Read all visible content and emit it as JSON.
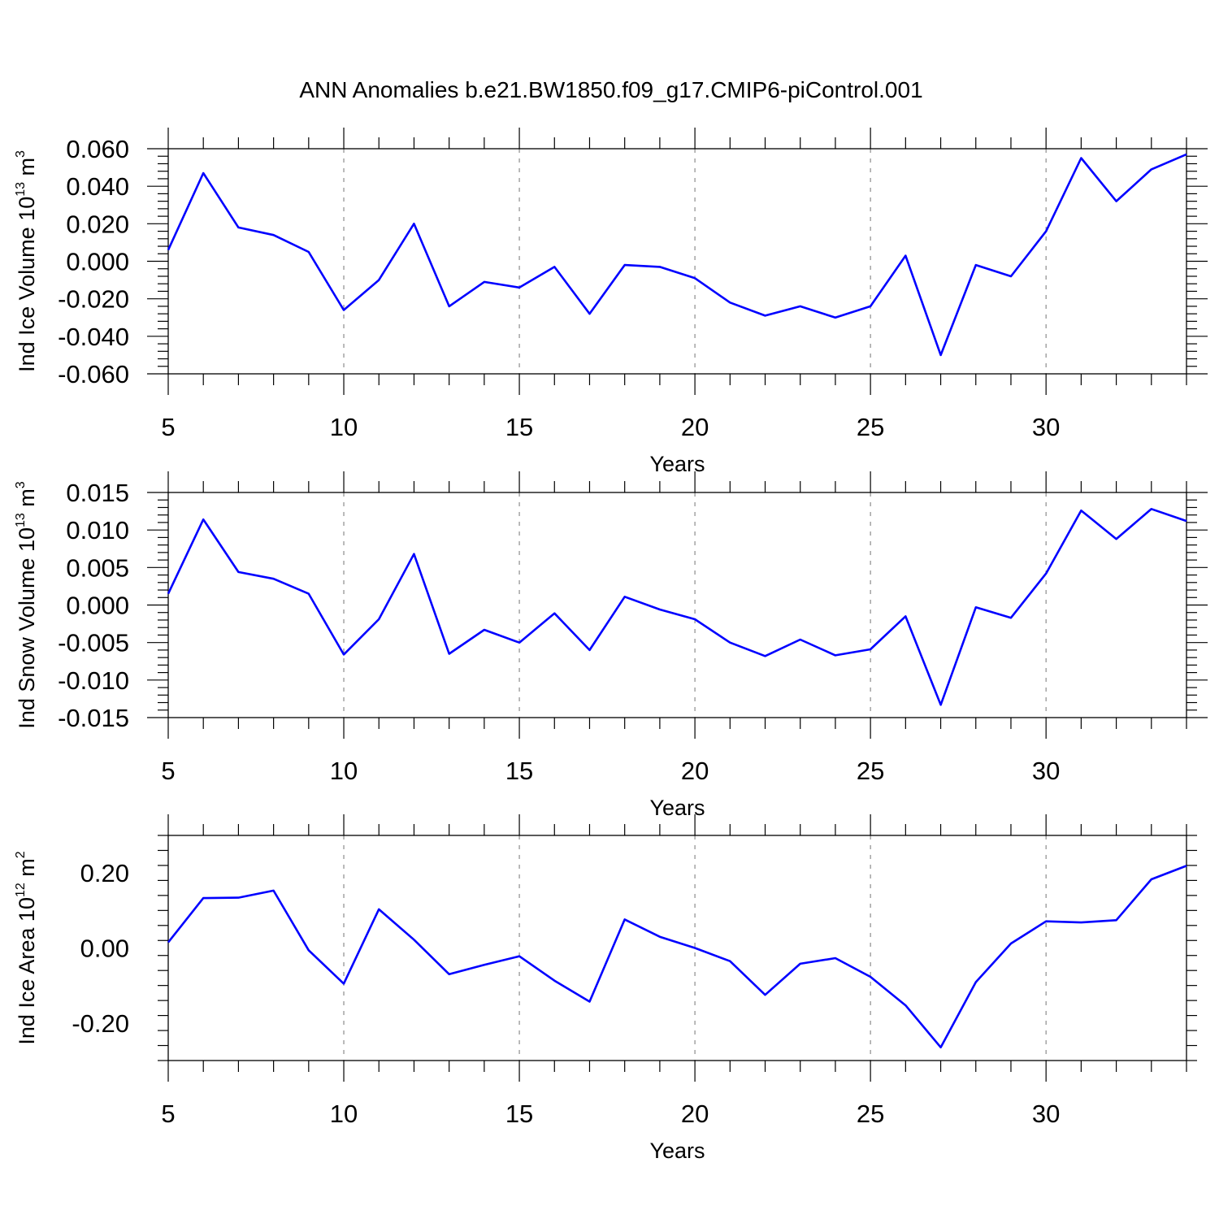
{
  "figure": {
    "title": "ANN Anomalies b.e21.BW1850.f09_g17.CMIP6-piControl.001"
  },
  "colors": {
    "line": "#0000ff",
    "axis": "#000000",
    "grid": "#8c8c8c"
  },
  "chart_data": [
    {
      "type": "line",
      "xlabel": "Years",
      "ylabel_main": "Ind Ice Volume 10",
      "ylabel_exp": "13",
      "ylabel_unit": " m",
      "ylabel_unit_exp": "3",
      "xlim": [
        5,
        34
      ],
      "ylim": [
        -0.06,
        0.06
      ],
      "xticks": [
        5,
        10,
        15,
        20,
        25,
        30
      ],
      "yticks": [
        0.06,
        0.04,
        0.02,
        0.0,
        -0.02,
        -0.04,
        -0.06
      ],
      "ytick_labels": [
        "0.060",
        "0.040",
        "0.020",
        "0.000",
        "-0.020",
        "-0.040",
        "-0.060"
      ],
      "vertical_dashed_grid_at": [
        10,
        15,
        20,
        25,
        30
      ],
      "series": [
        {
          "x": [
            5,
            6,
            7,
            8,
            9,
            10,
            11,
            12,
            13,
            14,
            15,
            16,
            17,
            18,
            19,
            20,
            21,
            22,
            23,
            24,
            25,
            26,
            27,
            28,
            29,
            30,
            31,
            32,
            33,
            34
          ],
          "values": [
            0.006,
            0.047,
            0.018,
            0.014,
            0.005,
            -0.026,
            -0.01,
            0.02,
            -0.024,
            -0.011,
            -0.014,
            -0.003,
            -0.028,
            -0.002,
            -0.003,
            -0.009,
            -0.022,
            -0.029,
            -0.024,
            -0.03,
            -0.024,
            0.003,
            -0.05,
            -0.002,
            -0.008,
            0.016,
            0.055,
            0.032,
            0.049,
            0.057
          ]
        }
      ]
    },
    {
      "type": "line",
      "xlabel": "Years",
      "ylabel_main": "Ind Snow Volume 10",
      "ylabel_exp": "13",
      "ylabel_unit": " m",
      "ylabel_unit_exp": "3",
      "xlim": [
        5,
        34
      ],
      "ylim": [
        -0.015,
        0.015
      ],
      "xticks": [
        5,
        10,
        15,
        20,
        25,
        30
      ],
      "yticks": [
        0.015,
        0.01,
        0.005,
        0.0,
        -0.005,
        -0.01,
        -0.015
      ],
      "ytick_labels": [
        "0.015",
        "0.010",
        "0.005",
        "0.000",
        "-0.005",
        "-0.010",
        "-0.015"
      ],
      "vertical_dashed_grid_at": [
        10,
        15,
        20,
        25,
        30
      ],
      "series": [
        {
          "x": [
            5,
            6,
            7,
            8,
            9,
            10,
            11,
            12,
            13,
            14,
            15,
            16,
            17,
            18,
            19,
            20,
            21,
            22,
            23,
            24,
            25,
            26,
            27,
            28,
            29,
            30,
            31,
            32,
            33,
            34
          ],
          "values": [
            0.0015,
            0.0114,
            0.0044,
            0.0035,
            0.0015,
            -0.0066,
            -0.0019,
            0.0068,
            -0.0065,
            -0.0033,
            -0.005,
            -0.0011,
            -0.006,
            0.0011,
            -0.0006,
            -0.0019,
            -0.005,
            -0.0068,
            -0.0046,
            -0.0067,
            -0.0059,
            -0.0015,
            -0.0133,
            -0.0003,
            -0.0017,
            0.0042,
            0.0126,
            0.0088,
            0.0128,
            0.0112
          ]
        }
      ]
    },
    {
      "type": "line",
      "xlabel": "Years",
      "ylabel_main": "Ind Ice Area 10",
      "ylabel_exp": "12",
      "ylabel_unit": " m",
      "ylabel_unit_exp": "2",
      "xlim": [
        5,
        34
      ],
      "ylim": [
        -0.3,
        0.3
      ],
      "xticks": [
        5,
        10,
        15,
        20,
        25,
        30
      ],
      "yticks": [
        0.2,
        0.0,
        -0.2
      ],
      "ytick_labels": [
        "0.20",
        "0.00",
        "-0.20"
      ],
      "vertical_dashed_grid_at": [
        10,
        15,
        20,
        25,
        30
      ],
      "series": [
        {
          "x": [
            5,
            6,
            7,
            8,
            9,
            10,
            11,
            12,
            13,
            14,
            15,
            16,
            17,
            18,
            19,
            20,
            21,
            22,
            23,
            24,
            25,
            26,
            27,
            28,
            29,
            30,
            31,
            32,
            33,
            34
          ],
          "values": [
            0.015,
            0.133,
            0.134,
            0.153,
            -0.006,
            -0.095,
            0.103,
            0.022,
            -0.07,
            -0.045,
            -0.022,
            -0.087,
            -0.143,
            0.076,
            0.03,
            0.0,
            -0.035,
            -0.125,
            -0.042,
            -0.027,
            -0.077,
            -0.153,
            -0.265,
            -0.091,
            0.012,
            0.071,
            0.068,
            0.074,
            0.183,
            0.219
          ]
        }
      ]
    }
  ]
}
